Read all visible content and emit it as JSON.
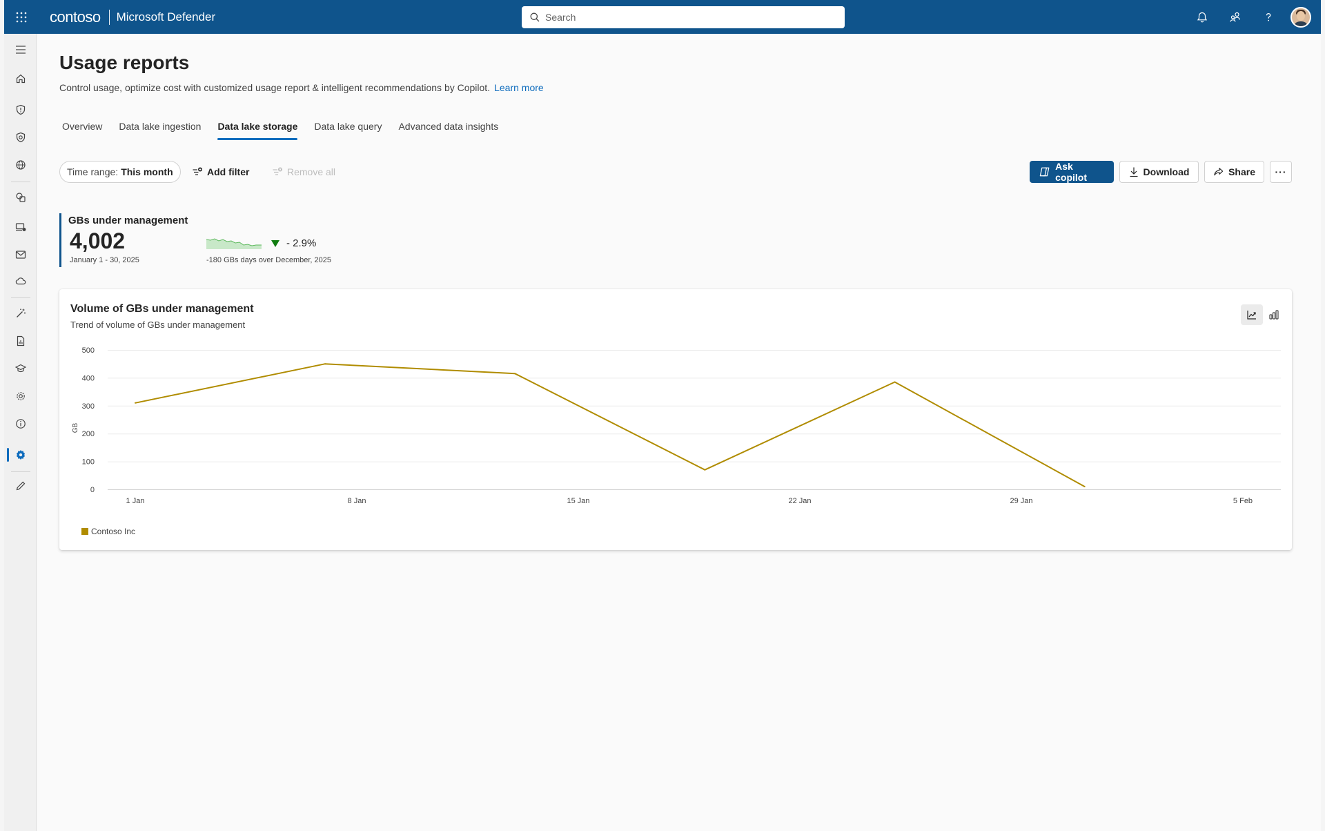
{
  "topbar": {
    "brand": "contoso",
    "product": "Microsoft Defender",
    "search_placeholder": "Search",
    "icons": [
      "notifications-icon",
      "share-users-icon",
      "help-icon"
    ]
  },
  "rail": {
    "items": [
      "menu-icon",
      "home-icon",
      "shield-icon",
      "protection-icon",
      "globe-icon",
      "assets-icon",
      "device-icon",
      "mail-icon",
      "cloud-icon",
      "wand-icon",
      "reports-icon",
      "learning-icon",
      "settings-gear-icon",
      "info-icon",
      "system-settings-icon",
      "edit-icon"
    ],
    "active": "system-settings-icon"
  },
  "page": {
    "title": "Usage reports",
    "subtitle": "Control usage, optimize cost with customized usage report & intelligent recommendations by Copilot.",
    "learn_more": "Learn more"
  },
  "tabs": [
    {
      "label": "Overview"
    },
    {
      "label": "Data lake ingestion"
    },
    {
      "label": "Data lake storage",
      "selected": true
    },
    {
      "label": "Data lake query"
    },
    {
      "label": "Advanced data insights"
    }
  ],
  "toolbar": {
    "time_range_label": "Time range:",
    "time_range_value": "This month",
    "add_filter": "Add filter",
    "remove_all": "Remove all",
    "ask_copilot": "Ask copilot",
    "download": "Download",
    "share": "Share",
    "more": "···"
  },
  "kpi": {
    "title": "GBs under management",
    "value": "4,002",
    "date_range": "January 1 - 30, 2025",
    "delta": "- 2.9%",
    "note": "-180 GBs days over December, 2025"
  },
  "colors": {
    "accent": "#0f548c",
    "series": "#b08c00",
    "positive_down": "#107c10"
  },
  "chart": {
    "title": "Volume of GBs under management",
    "subtitle": "Trend of volume of GBs under management"
  },
  "chart_data": {
    "type": "line",
    "title": "Volume of GBs under management",
    "subtitle": "Trend of volume of GBs under management",
    "ylabel": "GB",
    "xlabel": "",
    "ylim": [
      0,
      500
    ],
    "yticks": [
      0,
      100,
      200,
      300,
      400,
      500
    ],
    "x_tick_labels": [
      "1 Jan",
      "8 Jan",
      "15 Jan",
      "22 Jan",
      "29 Jan",
      "5 Feb"
    ],
    "x_tick_dates": [
      "2025-01-01",
      "2025-01-08",
      "2025-01-15",
      "2025-01-22",
      "2025-01-29",
      "2025-02-05"
    ],
    "xlim": [
      "2025-01-01",
      "2025-02-05"
    ],
    "grid": true,
    "legend": "bottom-left",
    "series": [
      {
        "name": "Contoso Inc",
        "x": [
          "2025-01-01",
          "2025-01-07",
          "2025-01-13",
          "2025-01-19",
          "2025-01-25",
          "2025-01-31"
        ],
        "values": [
          310,
          450,
          415,
          70,
          385,
          10
        ]
      }
    ]
  }
}
